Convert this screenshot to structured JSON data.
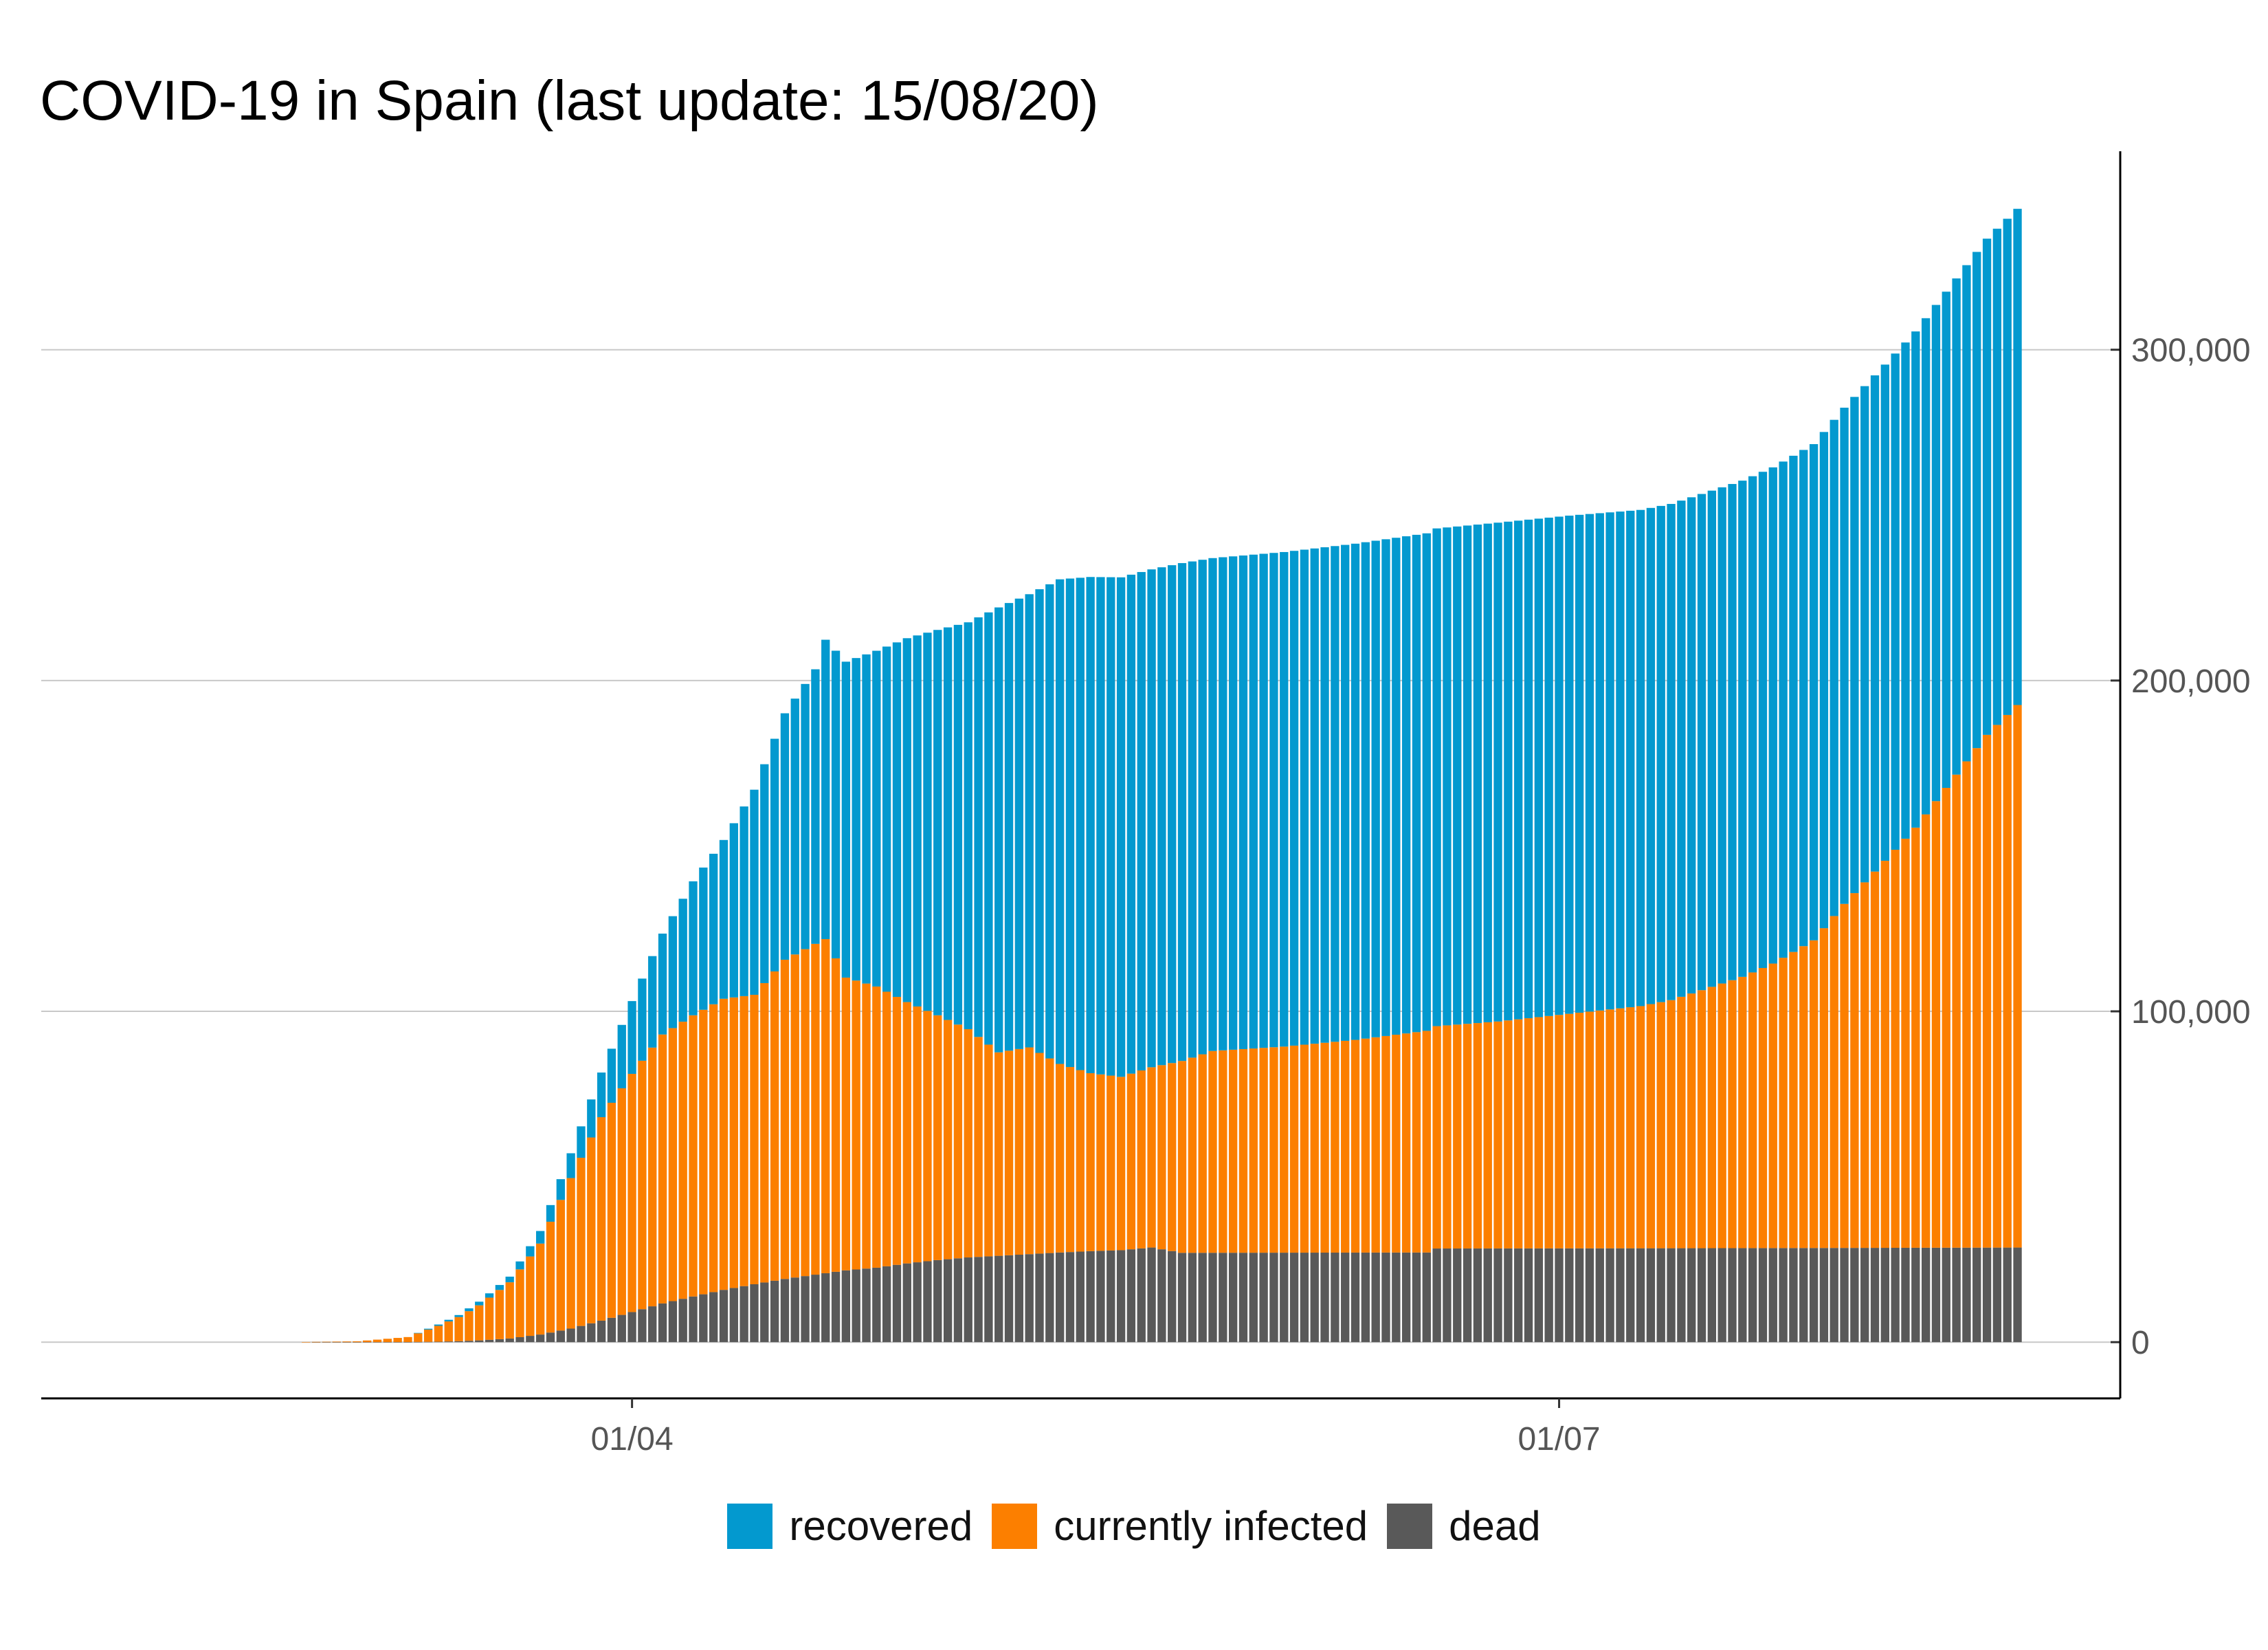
{
  "chart_data": {
    "type": "bar",
    "stacked": true,
    "title": "COVID-19 in Spain (last update: 15/08/20)",
    "xlabel": "",
    "ylabel": "",
    "x_start": "2020-01-31",
    "x_end": "2020-08-15",
    "x_ticks": [
      {
        "date": "2020-04-01",
        "label": "01/04"
      },
      {
        "date": "2020-07-01",
        "label": "01/07"
      }
    ],
    "y_ticks": [
      {
        "value": 0,
        "label": "0"
      },
      {
        "value": 100000,
        "label": "100,000"
      },
      {
        "value": 200000,
        "label": "200,000"
      },
      {
        "value": 300000,
        "label": "300,000"
      }
    ],
    "ylim": [
      -17000,
      360000
    ],
    "y_axis_position": "right",
    "grid": "horizontal",
    "legend_position": "bottom",
    "series": [
      {
        "name": "dead",
        "color": "#595959",
        "points": [
          [
            "2020-02-29",
            0
          ],
          [
            "2020-03-05",
            1
          ],
          [
            "2020-03-10",
            35
          ],
          [
            "2020-03-13",
            130
          ],
          [
            "2020-03-15",
            290
          ],
          [
            "2020-03-17",
            530
          ],
          [
            "2020-03-20",
            1100
          ],
          [
            "2020-03-23",
            2300
          ],
          [
            "2020-03-26",
            4100
          ],
          [
            "2020-03-29",
            6500
          ],
          [
            "2020-04-01",
            9100
          ],
          [
            "2020-04-04",
            11700
          ],
          [
            "2020-04-07",
            13800
          ],
          [
            "2020-04-10",
            15800
          ],
          [
            "2020-04-13",
            17500
          ],
          [
            "2020-04-16",
            19100
          ],
          [
            "2020-04-19",
            20400
          ],
          [
            "2020-04-22",
            21700
          ],
          [
            "2020-04-25",
            22500
          ],
          [
            "2020-04-28",
            23800
          ],
          [
            "2020-05-01",
            24800
          ],
          [
            "2020-05-04",
            25600
          ],
          [
            "2020-05-07",
            26100
          ],
          [
            "2020-05-10",
            26600
          ],
          [
            "2020-05-13",
            27100
          ],
          [
            "2020-05-16",
            27500
          ],
          [
            "2020-05-19",
            27800
          ],
          [
            "2020-05-22",
            28600
          ],
          [
            "2020-05-25",
            27000
          ],
          [
            "2020-06-18",
            27100
          ],
          [
            "2020-06-19",
            28300
          ],
          [
            "2020-07-15",
            28400
          ],
          [
            "2020-08-01",
            28500
          ],
          [
            "2020-08-15",
            28600
          ]
        ]
      },
      {
        "name": "currently infected",
        "color": "#fc7f00",
        "points": [
          [
            "2020-02-29",
            40
          ],
          [
            "2020-03-05",
            240
          ],
          [
            "2020-03-10",
            1500
          ],
          [
            "2020-03-13",
            4800
          ],
          [
            "2020-03-15",
            7300
          ],
          [
            "2020-03-17",
            10600
          ],
          [
            "2020-03-20",
            17000
          ],
          [
            "2020-03-23",
            27500
          ],
          [
            "2020-03-26",
            45500
          ],
          [
            "2020-03-29",
            61500
          ],
          [
            "2020-04-01",
            72000
          ],
          [
            "2020-04-04",
            81300
          ],
          [
            "2020-04-07",
            85000
          ],
          [
            "2020-04-10",
            88000
          ],
          [
            "2020-04-13",
            87500
          ],
          [
            "2020-04-16",
            96500
          ],
          [
            "2020-04-19",
            100000
          ],
          [
            "2020-04-20",
            101000
          ],
          [
            "2020-04-22",
            88500
          ],
          [
            "2020-04-25",
            85000
          ],
          [
            "2020-04-28",
            79000
          ],
          [
            "2020-05-04",
            69000
          ],
          [
            "2020-05-07",
            61500
          ],
          [
            "2020-05-10",
            62500
          ],
          [
            "2020-05-13",
            57000
          ],
          [
            "2020-05-16",
            53800
          ],
          [
            "2020-05-19",
            52400
          ],
          [
            "2020-05-22",
            54500
          ],
          [
            "2020-05-25",
            58000
          ],
          [
            "2020-05-28",
            61000
          ],
          [
            "2020-06-04",
            62300
          ],
          [
            "2020-06-11",
            64300
          ],
          [
            "2020-06-18",
            67000
          ],
          [
            "2020-06-25",
            68600
          ],
          [
            "2020-07-02",
            70900
          ],
          [
            "2020-07-09",
            73200
          ],
          [
            "2020-07-12",
            75000
          ],
          [
            "2020-07-15",
            78000
          ],
          [
            "2020-07-19",
            82000
          ],
          [
            "2020-07-22",
            86000
          ],
          [
            "2020-07-26",
            93000
          ],
          [
            "2020-07-29",
            104000
          ],
          [
            "2020-08-02",
            117000
          ],
          [
            "2020-08-05",
            127000
          ],
          [
            "2020-08-09",
            143000
          ],
          [
            "2020-08-12",
            155000
          ],
          [
            "2020-08-15",
            164000
          ]
        ]
      },
      {
        "name": "recovered",
        "color": "#0399cf",
        "points": [
          [
            "2020-03-10",
            0
          ],
          [
            "2020-03-13",
            400
          ],
          [
            "2020-03-15",
            600
          ],
          [
            "2020-03-17",
            1100
          ],
          [
            "2020-03-20",
            1700
          ],
          [
            "2020-03-23",
            3800
          ],
          [
            "2020-03-26",
            7500
          ],
          [
            "2020-03-29",
            13500
          ],
          [
            "2020-04-01",
            22000
          ],
          [
            "2020-04-04",
            30500
          ],
          [
            "2020-04-07",
            40500
          ],
          [
            "2020-04-10",
            48000
          ],
          [
            "2020-04-13",
            62000
          ],
          [
            "2020-04-16",
            74500
          ],
          [
            "2020-04-19",
            83000
          ],
          [
            "2020-04-20",
            90500
          ],
          [
            "2020-04-22",
            95500
          ],
          [
            "2020-04-25",
            101500
          ],
          [
            "2020-04-28",
            110000
          ],
          [
            "2020-05-04",
            123000
          ],
          [
            "2020-05-07",
            134500
          ],
          [
            "2020-05-10",
            137000
          ],
          [
            "2020-05-13",
            146500
          ],
          [
            "2020-05-16",
            150000
          ],
          [
            "2020-05-19",
            151000
          ],
          [
            "2020-05-22",
            150500
          ],
          [
            "2020-05-25",
            150500
          ],
          [
            "2020-05-28",
            149000
          ],
          [
            "2020-06-04",
            149500
          ],
          [
            "2020-06-11",
            150000
          ],
          [
            "2020-06-18",
            150400
          ],
          [
            "2020-06-25",
            150800
          ],
          [
            "2020-07-02",
            150600
          ],
          [
            "2020-07-09",
            150000
          ],
          [
            "2020-07-12",
            150000
          ],
          [
            "2020-07-15",
            150000
          ],
          [
            "2020-07-19",
            150000
          ],
          [
            "2020-07-22",
            150000
          ],
          [
            "2020-07-26",
            150000
          ],
          [
            "2020-07-29",
            150000
          ],
          [
            "2020-08-02",
            150000
          ],
          [
            "2020-08-05",
            150000
          ],
          [
            "2020-08-09",
            150000
          ],
          [
            "2020-08-12",
            150000
          ],
          [
            "2020-08-15",
            150000
          ]
        ]
      }
    ]
  }
}
